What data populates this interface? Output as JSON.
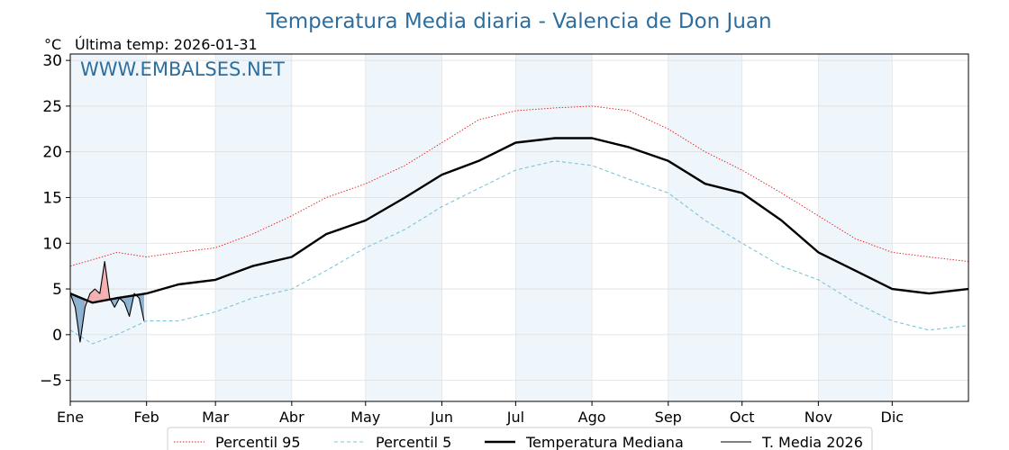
{
  "chart_data": {
    "type": "line",
    "title": "Temperatura Media diaria - Valencia de Don Juan",
    "unit_label": "°C",
    "last_temp_label": "Última temp: 2026-01-31",
    "watermark": "WWW.EMBALSES.NET",
    "ylim": [
      -7.3,
      30.7
    ],
    "xlim": [
      1,
      366
    ],
    "y_ticks": [
      -5,
      0,
      5,
      10,
      15,
      20,
      25,
      30
    ],
    "y_tick_labels": [
      "−5",
      "0",
      "5",
      "10",
      "15",
      "20",
      "25",
      "30"
    ],
    "months": [
      {
        "label": "Ene",
        "day": 1
      },
      {
        "label": "Feb",
        "day": 32
      },
      {
        "label": "Mar",
        "day": 60
      },
      {
        "label": "Abr",
        "day": 91
      },
      {
        "label": "May",
        "day": 121
      },
      {
        "label": "Jun",
        "day": 152
      },
      {
        "label": "Jul",
        "day": 182
      },
      {
        "label": "Ago",
        "day": 213
      },
      {
        "label": "Sep",
        "day": 244
      },
      {
        "label": "Oct",
        "day": 274
      },
      {
        "label": "Nov",
        "day": 305
      },
      {
        "label": "Dic",
        "day": 335
      }
    ],
    "grid": true,
    "legend_position": "bottom-center",
    "series": [
      {
        "name": "Percentil 95",
        "color": "#e31a1c",
        "style": "dotted",
        "x": [
          1,
          10,
          20,
          32,
          45,
          60,
          75,
          91,
          105,
          121,
          137,
          152,
          167,
          182,
          198,
          213,
          228,
          244,
          259,
          274,
          290,
          305,
          320,
          335,
          350,
          366
        ],
        "values": [
          7.5,
          8.2,
          9.0,
          8.5,
          9.0,
          9.5,
          11.0,
          13.0,
          15.0,
          16.5,
          18.5,
          21.0,
          23.5,
          24.5,
          24.8,
          25.0,
          24.5,
          22.5,
          20.0,
          18.0,
          15.5,
          13.0,
          10.5,
          9.0,
          8.5,
          8.0
        ]
      },
      {
        "name": "Percentil 5",
        "color": "#7fc4d8",
        "style": "dashed",
        "x": [
          1,
          10,
          20,
          32,
          45,
          60,
          75,
          91,
          105,
          121,
          137,
          152,
          167,
          182,
          198,
          213,
          228,
          244,
          259,
          274,
          290,
          305,
          320,
          335,
          350,
          366
        ],
        "values": [
          0.5,
          -1.0,
          0.0,
          1.5,
          1.5,
          2.5,
          4.0,
          5.0,
          7.0,
          9.5,
          11.5,
          14.0,
          16.0,
          18.0,
          19.0,
          18.5,
          17.0,
          15.5,
          12.5,
          10.0,
          7.5,
          6.0,
          3.5,
          1.5,
          0.5,
          1.0
        ]
      },
      {
        "name": "Temperatura Mediana",
        "color": "#000000",
        "style": "solid-thick",
        "x": [
          1,
          10,
          20,
          32,
          45,
          60,
          75,
          91,
          105,
          121,
          137,
          152,
          167,
          182,
          198,
          213,
          228,
          244,
          259,
          274,
          290,
          305,
          320,
          335,
          350,
          366
        ],
        "values": [
          4.5,
          3.5,
          4.0,
          4.5,
          5.5,
          6.0,
          7.5,
          8.5,
          11.0,
          12.5,
          15.0,
          17.5,
          19.0,
          21.0,
          21.5,
          21.5,
          20.5,
          19.0,
          16.5,
          15.5,
          12.5,
          9.0,
          7.0,
          5.0,
          4.5,
          5.0
        ]
      },
      {
        "name": "T. Media 2026",
        "color": "#000000",
        "style": "solid-thin",
        "x": [
          1,
          3,
          5,
          7,
          9,
          11,
          13,
          15,
          17,
          19,
          21,
          23,
          25,
          27,
          29,
          31
        ],
        "values": [
          4.5,
          3.0,
          -0.8,
          3.0,
          4.5,
          5.0,
          4.5,
          8.0,
          4.0,
          3.0,
          4.0,
          3.5,
          2.0,
          4.5,
          4.0,
          1.5
        ]
      }
    ]
  }
}
